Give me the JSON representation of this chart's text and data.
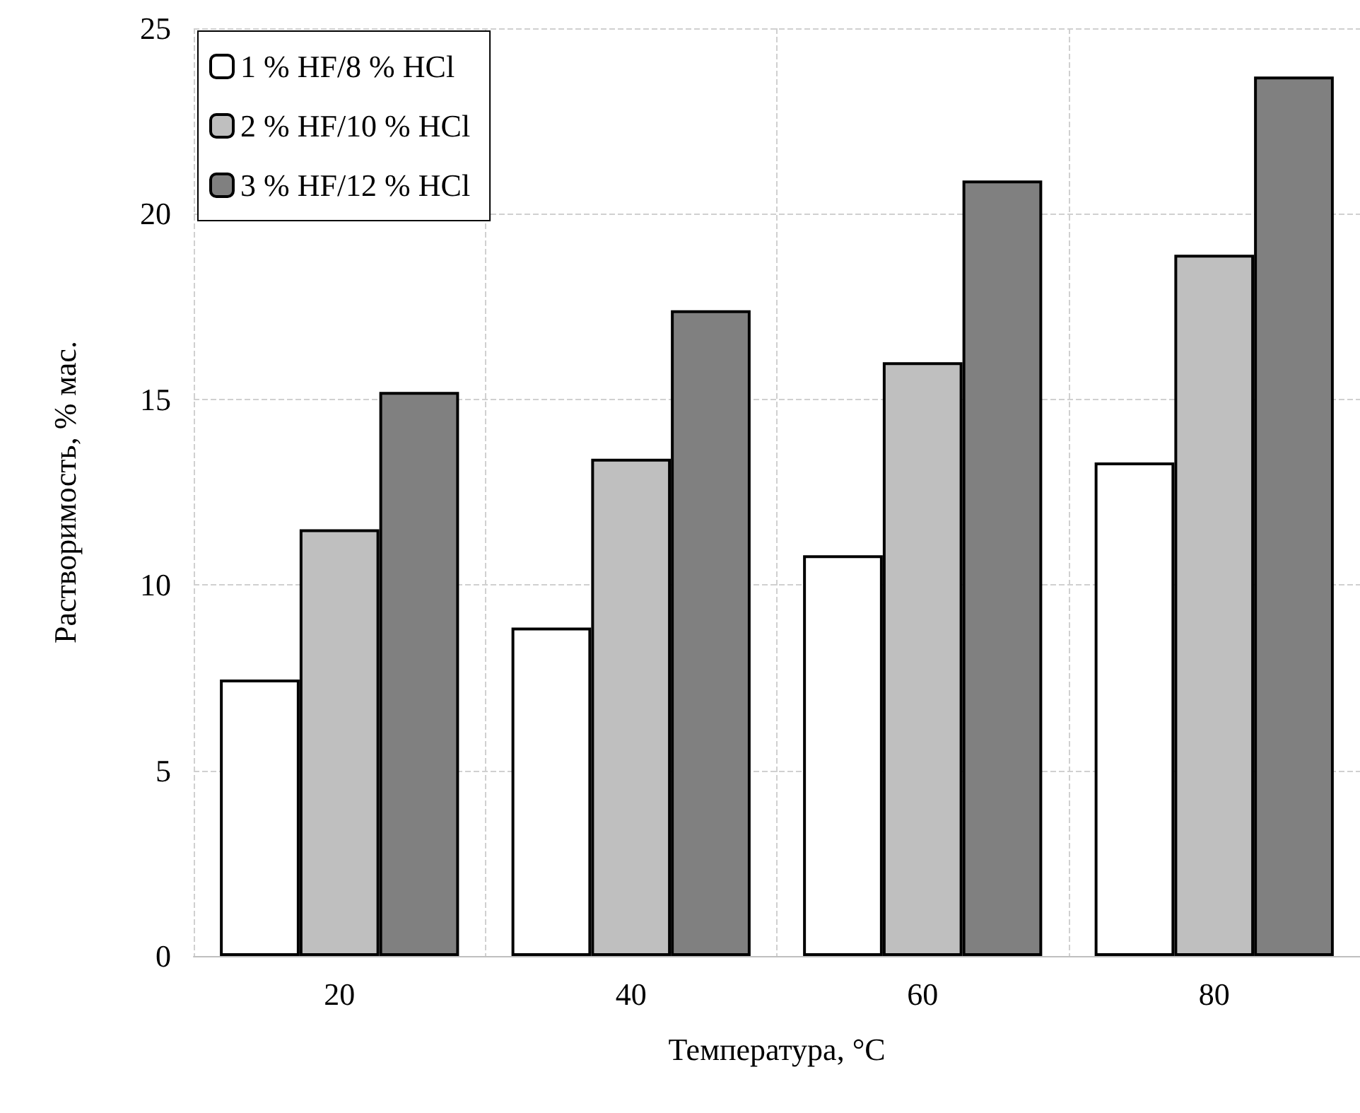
{
  "chart_data": {
    "type": "bar",
    "xlabel": "Температура, °C",
    "ylabel": "Растворимость, % мас.",
    "categories": [
      "20",
      "40",
      "60",
      "80"
    ],
    "series": [
      {
        "name": "1 % HF/8 % HCl",
        "color": "#ffffff",
        "values": [
          7.45,
          8.85,
          10.8,
          13.3
        ]
      },
      {
        "name": "2 % HF/10 % HCl",
        "color": "#bfbfbf",
        "values": [
          11.5,
          13.4,
          16.0,
          18.9
        ]
      },
      {
        "name": "3 % HF/12 % HCl",
        "color": "#808080",
        "values": [
          15.2,
          17.4,
          20.9,
          23.7
        ]
      }
    ],
    "ylim": [
      0,
      25
    ],
    "yticks": [
      0,
      5,
      10,
      15,
      20,
      25
    ],
    "grid": true,
    "legend": "top left"
  }
}
